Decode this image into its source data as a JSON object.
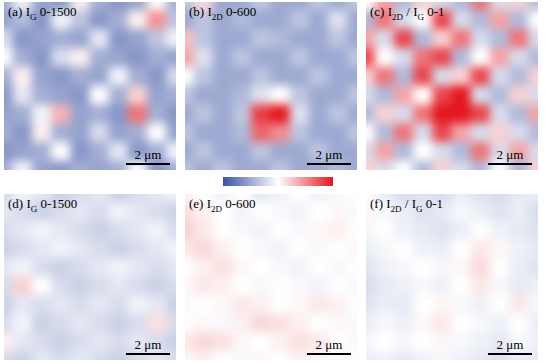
{
  "chart_data": [
    {
      "type": "heatmap",
      "title": [
        {
          "text": "(a) I"
        },
        {
          "text": "G",
          "sub": true
        },
        {
          "text": " 0-1500"
        }
      ],
      "zlim": [
        0,
        1500
      ],
      "scale_bar": "2 μm",
      "tick_labels": false,
      "cells": [
        [
          400,
          700,
          350,
          300,
          800,
          400,
          300,
          350,
          750,
          400
        ],
        [
          350,
          450,
          300,
          700,
          500,
          300,
          400,
          800,
          1100,
          500
        ],
        [
          600,
          300,
          350,
          400,
          350,
          650,
          300,
          350,
          500,
          700
        ],
        [
          750,
          400,
          300,
          600,
          800,
          400,
          350,
          300,
          400,
          350
        ],
        [
          400,
          800,
          350,
          300,
          400,
          350,
          700,
          400,
          300,
          600
        ],
        [
          300,
          650,
          400,
          350,
          300,
          750,
          400,
          900,
          350,
          400
        ],
        [
          350,
          400,
          700,
          1000,
          350,
          400,
          300,
          1200,
          400,
          300
        ],
        [
          400,
          300,
          800,
          400,
          350,
          600,
          350,
          400,
          750,
          350
        ],
        [
          300,
          350,
          400,
          750,
          300,
          400,
          650,
          300,
          400,
          700
        ],
        [
          400,
          700,
          350,
          300,
          400,
          350,
          400,
          750,
          300,
          400
        ]
      ]
    },
    {
      "type": "heatmap",
      "title": [
        {
          "text": "(b) I"
        },
        {
          "text": "2D",
          "sub": true
        },
        {
          "text": " 0-600"
        }
      ],
      "zlim": [
        0,
        600
      ],
      "scale_bar": "2 μm",
      "tick_labels": false,
      "cells": [
        [
          200,
          350,
          150,
          150,
          200,
          150,
          150,
          200,
          150,
          200
        ],
        [
          150,
          200,
          150,
          180,
          150,
          150,
          200,
          150,
          250,
          150
        ],
        [
          380,
          200,
          150,
          150,
          200,
          180,
          150,
          150,
          200,
          150
        ],
        [
          420,
          250,
          150,
          200,
          150,
          150,
          200,
          150,
          150,
          200
        ],
        [
          300,
          200,
          150,
          150,
          200,
          150,
          150,
          200,
          150,
          150
        ],
        [
          200,
          150,
          150,
          180,
          250,
          300,
          200,
          150,
          150,
          200
        ],
        [
          150,
          200,
          150,
          200,
          550,
          600,
          250,
          150,
          200,
          150
        ],
        [
          200,
          150,
          150,
          180,
          500,
          450,
          200,
          150,
          150,
          200
        ],
        [
          150,
          200,
          150,
          150,
          200,
          150,
          150,
          200,
          150,
          150
        ],
        [
          200,
          150,
          200,
          150,
          150,
          200,
          150,
          150,
          180,
          150
        ]
      ]
    },
    {
      "type": "heatmap",
      "title": [
        {
          "text": "(c) I"
        },
        {
          "text": "2D",
          "sub": true
        },
        {
          "text": " / I"
        },
        {
          "text": "G",
          "sub": true
        },
        {
          "text": " 0-1"
        }
      ],
      "zlim": [
        0,
        1
      ],
      "scale_bar": "2 μm",
      "tick_labels": false,
      "cells": [
        [
          0.5,
          0.7,
          0.3,
          0.6,
          0.4,
          0.3,
          0.8,
          0.4,
          0.6,
          0.3
        ],
        [
          0.3,
          0.8,
          0.4,
          0.5,
          0.9,
          0.4,
          0.3,
          0.7,
          0.3,
          0.5
        ],
        [
          0.7,
          0.4,
          0.9,
          0.3,
          0.6,
          0.8,
          0.4,
          0.3,
          0.8,
          0.4
        ],
        [
          0.9,
          0.5,
          0.4,
          0.8,
          0.9,
          0.3,
          0.5,
          0.7,
          0.4,
          0.3
        ],
        [
          0.6,
          0.8,
          0.3,
          0.9,
          0.4,
          0.6,
          0.9,
          0.4,
          0.3,
          0.6
        ],
        [
          0.4,
          0.3,
          0.7,
          0.5,
          0.9,
          1,
          0.4,
          0.3,
          0.6,
          0.4
        ],
        [
          0.3,
          0.6,
          0.4,
          0.8,
          1,
          1,
          0.9,
          0.4,
          0.3,
          0.7
        ],
        [
          0.5,
          0.3,
          0.8,
          0.4,
          0.9,
          0.7,
          0.4,
          0.6,
          0.4,
          0.3
        ],
        [
          0.4,
          0.7,
          0.3,
          0.5,
          0.4,
          0.3,
          0.8,
          0.4,
          0.7,
          0.4
        ],
        [
          0.6,
          0.4,
          0.5,
          0.3,
          0.6,
          0.4,
          0.3,
          0.5,
          0.3,
          0.6
        ]
      ]
    },
    {
      "type": "heatmap",
      "title": [
        {
          "text": "(d) I"
        },
        {
          "text": "G",
          "sub": true
        },
        {
          "text": " 0-1500"
        }
      ],
      "zlim": [
        0,
        1500
      ],
      "scale_bar": "2 μm",
      "tick_labels": false,
      "cells": [
        [
          600,
          700,
          650,
          550,
          600,
          650,
          550,
          600,
          650,
          700
        ],
        [
          650,
          600,
          550,
          600,
          650,
          600,
          700,
          650,
          600,
          550
        ],
        [
          600,
          650,
          700,
          650,
          600,
          550,
          600,
          650,
          700,
          600
        ],
        [
          550,
          600,
          650,
          700,
          650,
          600,
          550,
          600,
          650,
          700
        ],
        [
          650,
          700,
          600,
          550,
          600,
          650,
          700,
          650,
          600,
          650
        ],
        [
          600,
          900,
          750,
          600,
          550,
          600,
          650,
          600,
          550,
          600
        ],
        [
          550,
          650,
          600,
          650,
          600,
          650,
          600,
          700,
          650,
          550
        ],
        [
          600,
          700,
          550,
          600,
          650,
          600,
          550,
          600,
          850,
          600
        ],
        [
          800,
          650,
          600,
          550,
          600,
          650,
          600,
          650,
          600,
          550
        ],
        [
          600,
          550,
          650,
          600,
          650,
          600,
          550,
          600,
          650,
          600
        ]
      ]
    },
    {
      "type": "heatmap",
      "title": [
        {
          "text": "(e) I"
        },
        {
          "text": "2D",
          "sub": true
        },
        {
          "text": " 0-600"
        }
      ],
      "zlim": [
        0,
        600
      ],
      "scale_bar": "2 μm",
      "tick_labels": false,
      "cells": [
        [
          320,
          300,
          280,
          300,
          260,
          280,
          300,
          280,
          290,
          300
        ],
        [
          340,
          320,
          300,
          280,
          300,
          290,
          280,
          300,
          310,
          290
        ],
        [
          360,
          330,
          300,
          290,
          280,
          300,
          290,
          310,
          320,
          300
        ],
        [
          330,
          350,
          320,
          300,
          290,
          280,
          300,
          290,
          300,
          310
        ],
        [
          300,
          320,
          340,
          310,
          300,
          290,
          280,
          300,
          290,
          300
        ],
        [
          310,
          330,
          320,
          300,
          290,
          300,
          290,
          280,
          300,
          290
        ],
        [
          290,
          300,
          310,
          330,
          320,
          300,
          310,
          330,
          320,
          300
        ],
        [
          300,
          310,
          290,
          320,
          350,
          340,
          320,
          300,
          310,
          290
        ],
        [
          330,
          350,
          340,
          310,
          300,
          320,
          340,
          330,
          300,
          310
        ],
        [
          310,
          320,
          300,
          290,
          310,
          300,
          320,
          310,
          290,
          300
        ]
      ]
    },
    {
      "type": "heatmap",
      "title": [
        {
          "text": "(f) I"
        },
        {
          "text": "2D",
          "sub": true
        },
        {
          "text": " / I"
        },
        {
          "text": "G",
          "sub": true
        },
        {
          "text": " 0-1"
        }
      ],
      "zlim": [
        0,
        1
      ],
      "scale_bar": "2 μm",
      "tick_labels": false,
      "cells": [
        [
          0.5,
          0.45,
          0.4,
          0.42,
          0.4,
          0.45,
          0.42,
          0.4,
          0.44,
          0.45
        ],
        [
          0.52,
          0.48,
          0.45,
          0.42,
          0.44,
          0.48,
          0.45,
          0.42,
          0.45,
          0.4
        ],
        [
          0.48,
          0.5,
          0.46,
          0.44,
          0.42,
          0.45,
          0.5,
          0.46,
          0.44,
          0.42
        ],
        [
          0.45,
          0.48,
          0.5,
          0.46,
          0.45,
          0.5,
          0.55,
          0.52,
          0.46,
          0.44
        ],
        [
          0.42,
          0.46,
          0.48,
          0.5,
          0.48,
          0.52,
          0.58,
          0.5,
          0.45,
          0.42
        ],
        [
          0.4,
          0.44,
          0.46,
          0.48,
          0.46,
          0.5,
          0.55,
          0.48,
          0.44,
          0.46
        ],
        [
          0.42,
          0.45,
          0.44,
          0.5,
          0.52,
          0.48,
          0.46,
          0.5,
          0.55,
          0.48
        ],
        [
          0.45,
          0.48,
          0.46,
          0.52,
          0.55,
          0.5,
          0.48,
          0.46,
          0.5,
          0.45
        ],
        [
          0.48,
          0.5,
          0.48,
          0.5,
          0.52,
          0.48,
          0.46,
          0.44,
          0.48,
          0.46
        ],
        [
          0.45,
          0.46,
          0.44,
          0.46,
          0.48,
          0.46,
          0.44,
          0.42,
          0.45,
          0.44
        ]
      ]
    }
  ],
  "colorbar": {
    "colors": [
      "#3b52a3",
      "#ffffff",
      "#e3171f"
    ]
  }
}
